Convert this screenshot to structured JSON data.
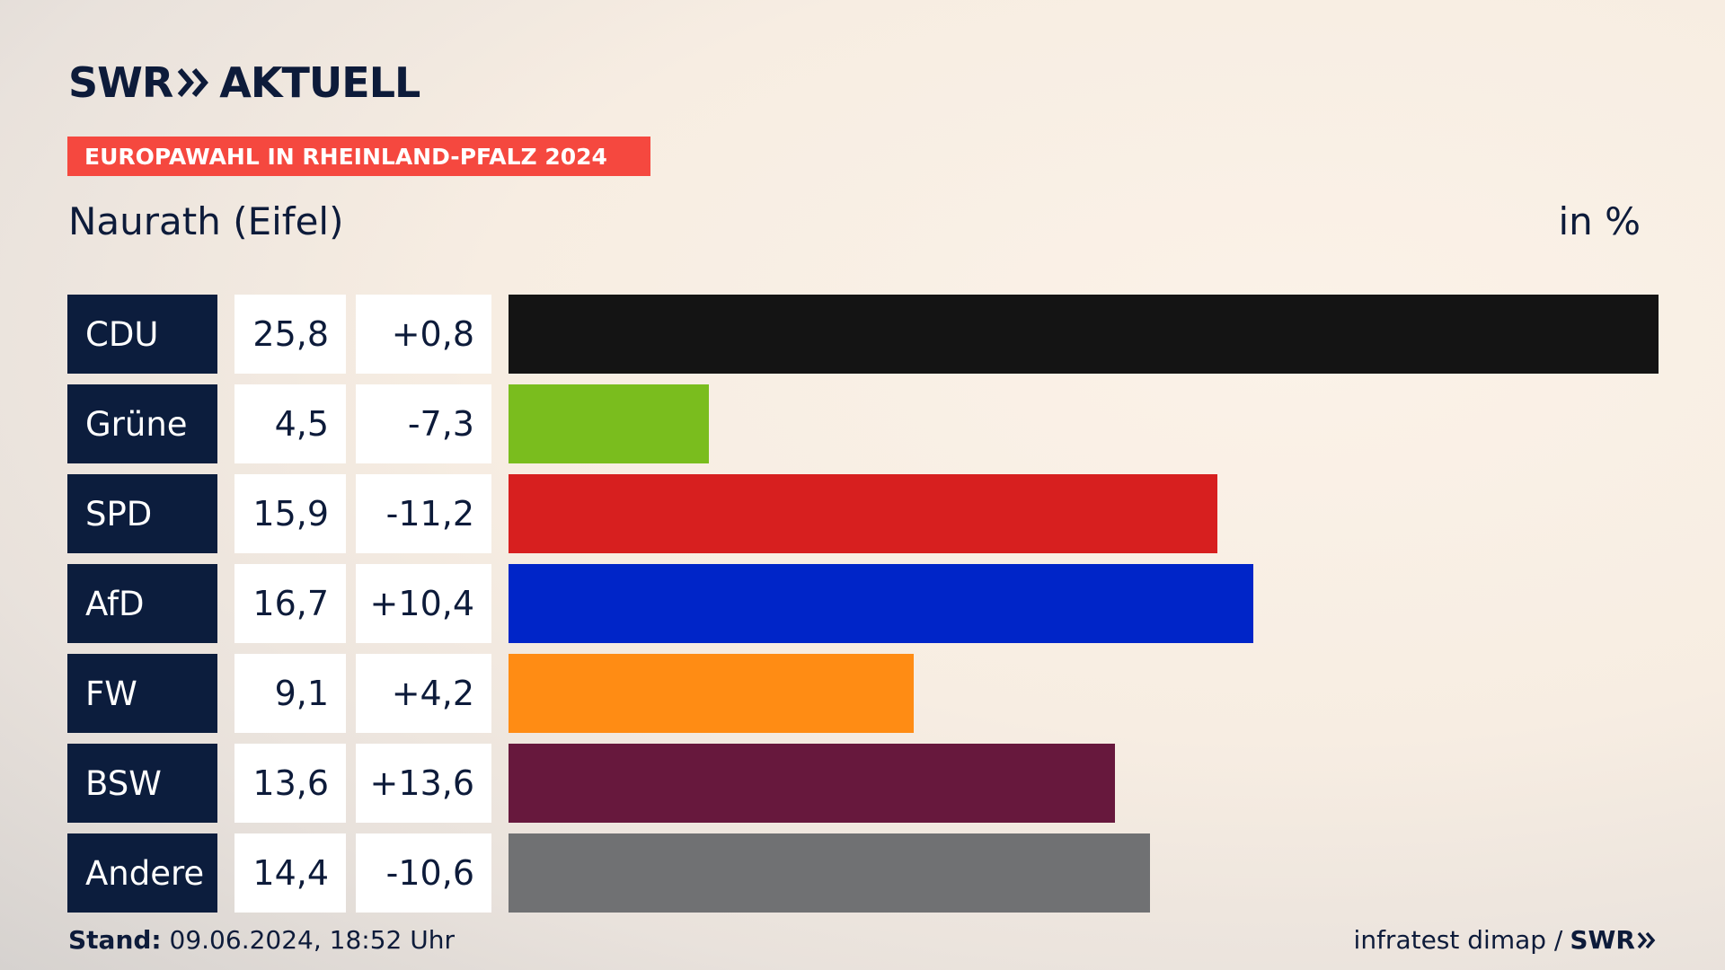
{
  "brand": {
    "name_left": "SWR",
    "name_right": "AKTUELL"
  },
  "banner": "EUROPAWAHL IN RHEINLAND-PFALZ 2024",
  "title": "Naurath (Eifel)",
  "unit": "in %",
  "footer": {
    "stand_label": "Stand:",
    "stand_value": "09.06.2024, 18:52 Uhr",
    "source": "infratest dimap /",
    "source_brand": "SWR"
  },
  "chart_data": {
    "type": "bar",
    "orientation": "horizontal",
    "categories": [
      "CDU",
      "Grüne",
      "SPD",
      "AfD",
      "FW",
      "BSW",
      "Andere"
    ],
    "series": [
      {
        "values": [
          25.8,
          4.5,
          15.9,
          16.7,
          9.1,
          13.6,
          14.4
        ]
      }
    ],
    "value_labels": [
      "25,8",
      "4,5",
      "15,9",
      "16,7",
      "9,1",
      "13,6",
      "14,4"
    ],
    "diff_labels": [
      "+0,8",
      "-7,3",
      "-11,2",
      "+10,4",
      "+4,2",
      "+13,6",
      "-10,6"
    ],
    "diffs": [
      0.8,
      -7.3,
      -11.2,
      10.4,
      4.2,
      13.6,
      -10.6
    ],
    "colors": [
      "#141414",
      "#7abd1e",
      "#d71f1f",
      "#0025c8",
      "#ff8c14",
      "#67183d",
      "#707173"
    ],
    "xlim": [
      0,
      25.8
    ],
    "grid": false
  }
}
